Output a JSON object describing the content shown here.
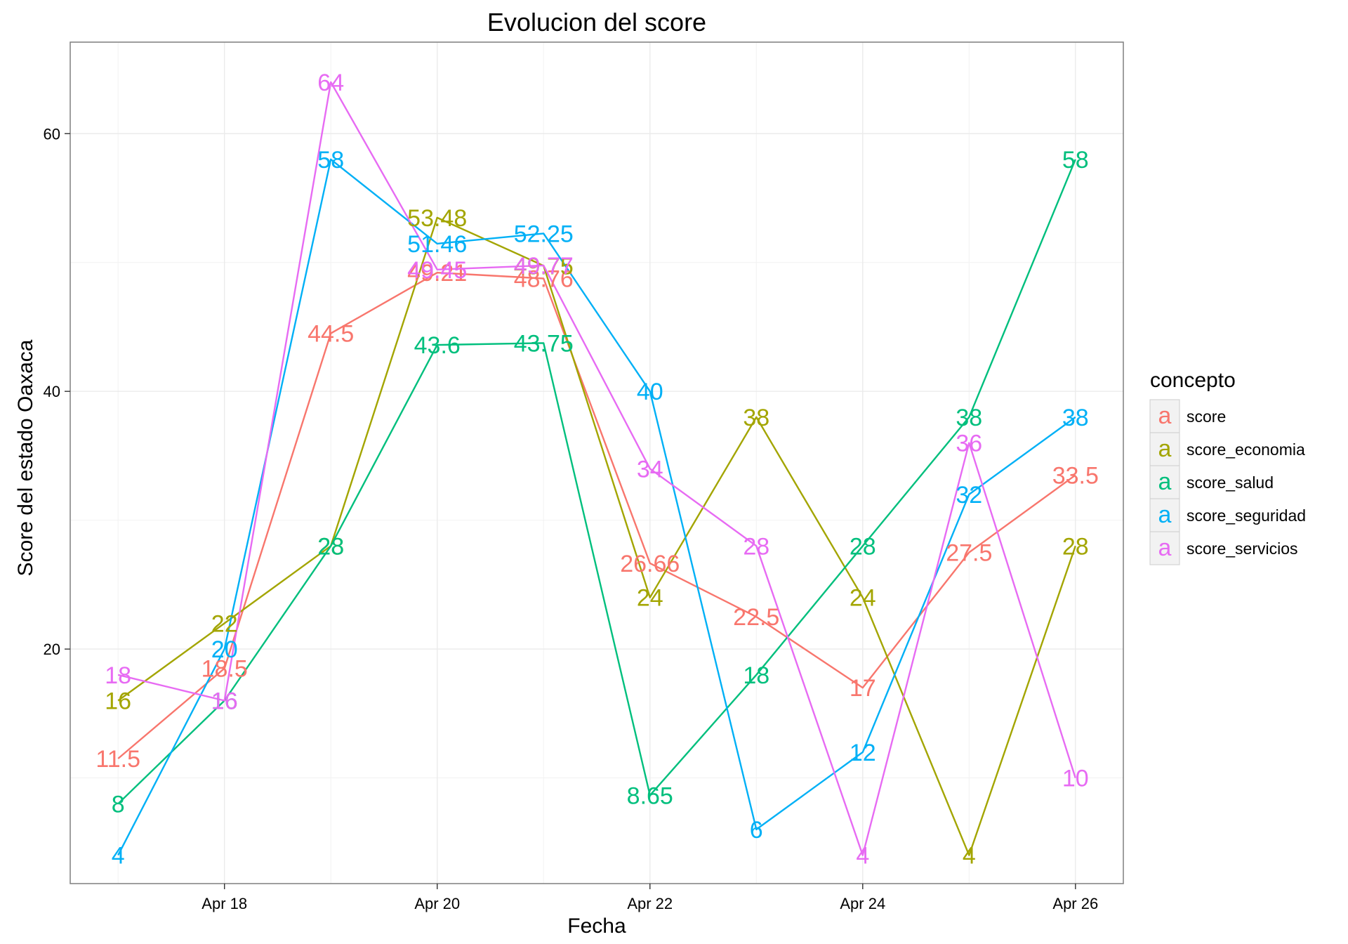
{
  "chart_data": {
    "type": "line",
    "title": "Evolucion del score",
    "xlabel": "Fecha",
    "ylabel": "Score del estado  Oaxaca",
    "x": [
      "Apr 17",
      "Apr 18",
      "Apr 19",
      "Apr 20",
      "Apr 21",
      "Apr 22",
      "Apr 23",
      "Apr 24",
      "Apr 25",
      "Apr 26"
    ],
    "x_ticks": [
      {
        "index": 1,
        "label": "Apr 18"
      },
      {
        "index": 3,
        "label": "Apr 20"
      },
      {
        "index": 5,
        "label": "Apr 22"
      },
      {
        "index": 7,
        "label": "Apr 24"
      },
      {
        "index": 9,
        "label": "Apr 26"
      }
    ],
    "y_ticks": [
      20,
      40,
      60
    ],
    "ylim": [
      1.8,
      67.1
    ],
    "xlim": [
      -0.45,
      9.45
    ],
    "grid": true,
    "legend": {
      "title": "concepto",
      "position": "right",
      "glyph": "a"
    },
    "series": [
      {
        "name": "score",
        "color": "#F8766D",
        "values": [
          11.5,
          18.5,
          44.5,
          49.21,
          48.76,
          26.66,
          22.5,
          17,
          27.5,
          33.5
        ],
        "labels": [
          "11.5",
          "18.5",
          "44.5",
          "49.21",
          "48.76",
          "26.66",
          "22.5",
          "17",
          "27.5",
          "33.5"
        ]
      },
      {
        "name": "score_economia",
        "color": "#A3A500",
        "values": [
          16,
          22,
          28,
          53.48,
          49.75,
          24,
          38,
          24,
          4,
          28
        ],
        "labels": [
          "16",
          "22",
          "28",
          "53.48",
          "49.75",
          "24",
          "38",
          "24",
          "4",
          "28"
        ]
      },
      {
        "name": "score_salud",
        "color": "#00BF7D",
        "values": [
          8,
          16,
          28,
          43.6,
          43.75,
          8.65,
          18,
          28,
          38,
          58
        ],
        "labels": [
          "8",
          "16",
          "28",
          "43.6",
          "43.75",
          "8.65",
          "18",
          "28",
          "38",
          "58"
        ]
      },
      {
        "name": "score_seguridad",
        "color": "#00B0F6",
        "values": [
          4,
          20,
          58,
          51.46,
          52.25,
          40,
          6,
          12,
          32,
          38
        ],
        "labels": [
          "4",
          "20",
          "58",
          "51.46",
          "52.25",
          "40",
          "6",
          "12",
          "32",
          "38"
        ]
      },
      {
        "name": "score_servicios",
        "color": "#E76BF3",
        "values": [
          18,
          16,
          64,
          49.45,
          49.77,
          34,
          28,
          4,
          36,
          10
        ],
        "labels": [
          "18",
          "16",
          "64",
          "49.45",
          "49.77",
          "34",
          "28",
          "4",
          "36",
          "10"
        ]
      }
    ]
  }
}
